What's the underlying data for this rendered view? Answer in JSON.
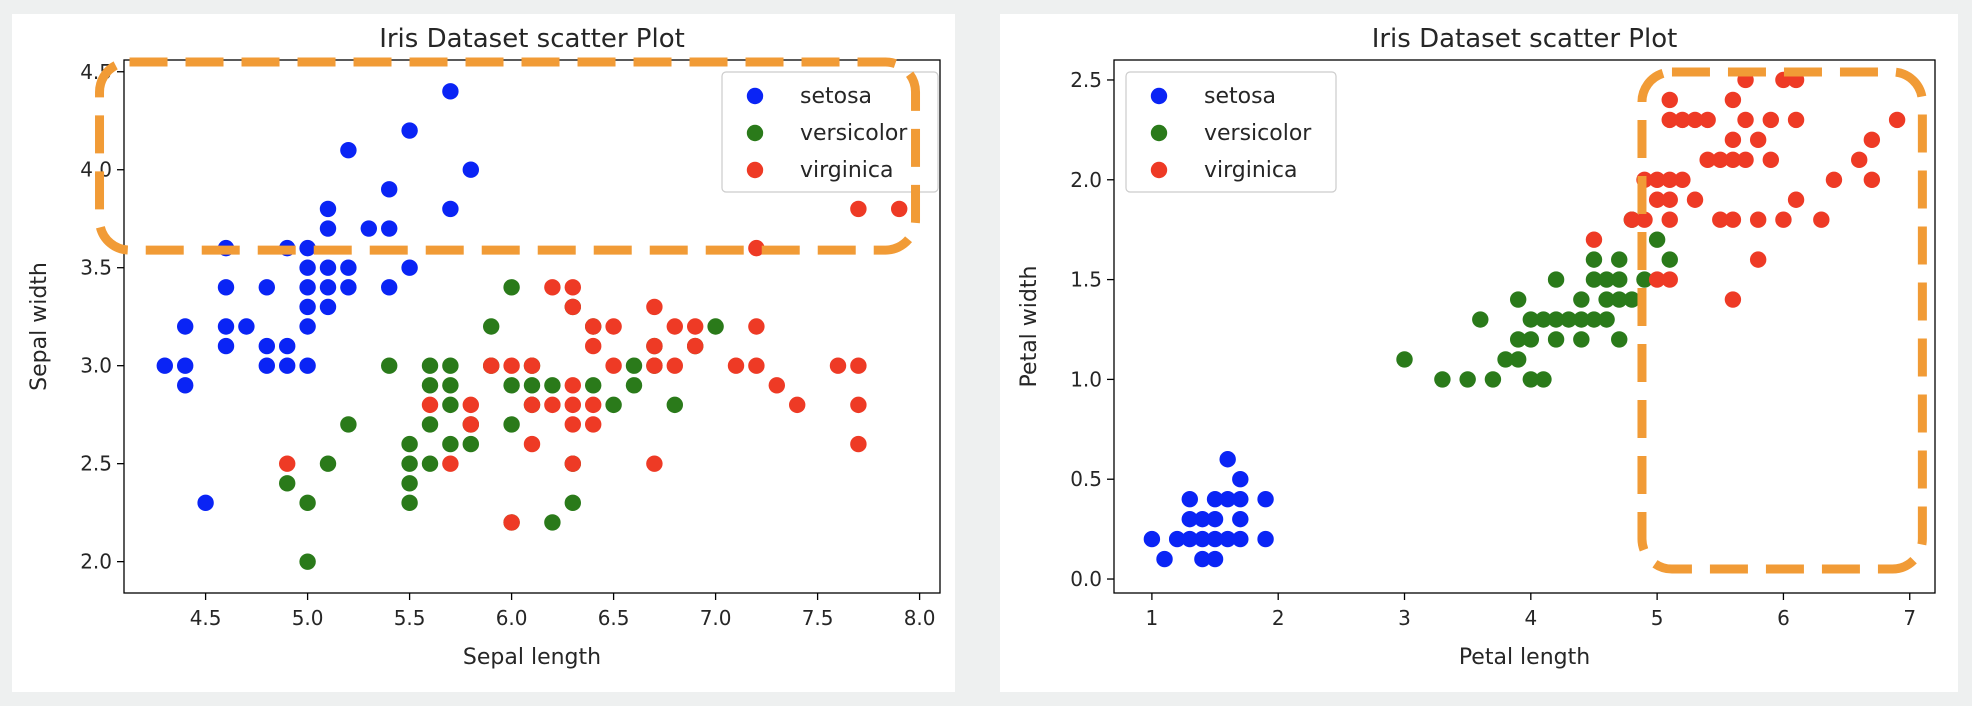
{
  "chart_data": [
    {
      "type": "scatter",
      "title": "Iris Dataset scatter Plot",
      "xlabel": "Sepal length",
      "ylabel": "Sepal width",
      "xlim": [
        4.1,
        8.1
      ],
      "ylim": [
        1.84,
        4.56
      ],
      "xticks": [
        4.5,
        5.0,
        5.5,
        6.0,
        6.5,
        7.0,
        7.5,
        8.0
      ],
      "yticks": [
        2.0,
        2.5,
        3.0,
        3.5,
        4.0,
        4.5
      ],
      "tick_format": "0.0",
      "legend_position": "top-right",
      "highlight_box": {
        "x": [
          3.98,
          7.98
        ],
        "y": [
          3.59,
          4.55
        ]
      },
      "series": [
        {
          "name": "setosa",
          "color": "#0a24f5",
          "points": [
            [
              4.3,
              3.0
            ],
            [
              4.4,
              2.9
            ],
            [
              4.4,
              3.0
            ],
            [
              4.4,
              3.2
            ],
            [
              4.5,
              2.3
            ],
            [
              4.6,
              3.1
            ],
            [
              4.6,
              3.2
            ],
            [
              4.6,
              3.4
            ],
            [
              4.6,
              3.6
            ],
            [
              4.7,
              3.2
            ],
            [
              4.8,
              3.0
            ],
            [
              4.8,
              3.1
            ],
            [
              4.8,
              3.4
            ],
            [
              4.9,
              3.0
            ],
            [
              4.9,
              3.1
            ],
            [
              4.9,
              3.6
            ],
            [
              5.0,
              3.0
            ],
            [
              5.0,
              3.2
            ],
            [
              5.0,
              3.3
            ],
            [
              5.0,
              3.4
            ],
            [
              5.0,
              3.5
            ],
            [
              5.0,
              3.6
            ],
            [
              5.1,
              3.3
            ],
            [
              5.1,
              3.4
            ],
            [
              5.1,
              3.5
            ],
            [
              5.1,
              3.7
            ],
            [
              5.1,
              3.8
            ],
            [
              5.2,
              3.4
            ],
            [
              5.2,
              3.5
            ],
            [
              5.2,
              4.1
            ],
            [
              5.3,
              3.7
            ],
            [
              5.4,
              3.4
            ],
            [
              5.4,
              3.7
            ],
            [
              5.4,
              3.9
            ],
            [
              5.5,
              3.5
            ],
            [
              5.5,
              4.2
            ],
            [
              5.7,
              3.8
            ],
            [
              5.7,
              4.4
            ],
            [
              5.8,
              4.0
            ]
          ]
        },
        {
          "name": "versicolor",
          "color": "#2a7a1a",
          "points": [
            [
              4.9,
              2.4
            ],
            [
              5.0,
              2.0
            ],
            [
              5.0,
              2.3
            ],
            [
              5.1,
              2.5
            ],
            [
              5.2,
              2.7
            ],
            [
              5.4,
              3.0
            ],
            [
              5.5,
              2.3
            ],
            [
              5.5,
              2.4
            ],
            [
              5.5,
              2.5
            ],
            [
              5.5,
              2.6
            ],
            [
              5.6,
              2.5
            ],
            [
              5.6,
              2.7
            ],
            [
              5.6,
              2.9
            ],
            [
              5.6,
              3.0
            ],
            [
              5.7,
              2.6
            ],
            [
              5.7,
              2.8
            ],
            [
              5.7,
              2.9
            ],
            [
              5.7,
              3.0
            ],
            [
              5.8,
              2.6
            ],
            [
              5.8,
              2.7
            ],
            [
              5.9,
              3.0
            ],
            [
              5.9,
              3.2
            ],
            [
              6.0,
              2.2
            ],
            [
              6.0,
              2.7
            ],
            [
              6.0,
              2.9
            ],
            [
              6.0,
              3.4
            ],
            [
              6.1,
              2.8
            ],
            [
              6.1,
              2.9
            ],
            [
              6.1,
              3.0
            ],
            [
              6.2,
              2.2
            ],
            [
              6.2,
              2.9
            ],
            [
              6.3,
              2.3
            ],
            [
              6.3,
              2.5
            ],
            [
              6.3,
              3.3
            ],
            [
              6.4,
              2.9
            ],
            [
              6.4,
              3.2
            ],
            [
              6.5,
              2.8
            ],
            [
              6.6,
              2.9
            ],
            [
              6.6,
              3.0
            ],
            [
              6.7,
              3.0
            ],
            [
              6.7,
              3.1
            ],
            [
              6.8,
              2.8
            ],
            [
              6.9,
              3.1
            ],
            [
              7.0,
              3.2
            ]
          ]
        },
        {
          "name": "virginica",
          "color": "#ee3a25",
          "points": [
            [
              4.9,
              2.5
            ],
            [
              5.6,
              2.8
            ],
            [
              5.7,
              2.5
            ],
            [
              5.8,
              2.7
            ],
            [
              5.8,
              2.8
            ],
            [
              5.9,
              3.0
            ],
            [
              6.0,
              2.2
            ],
            [
              6.0,
              3.0
            ],
            [
              6.1,
              2.6
            ],
            [
              6.1,
              2.8
            ],
            [
              6.1,
              3.0
            ],
            [
              6.2,
              2.8
            ],
            [
              6.2,
              3.4
            ],
            [
              6.3,
              2.5
            ],
            [
              6.3,
              2.7
            ],
            [
              6.3,
              2.8
            ],
            [
              6.3,
              2.9
            ],
            [
              6.3,
              3.3
            ],
            [
              6.3,
              3.4
            ],
            [
              6.4,
              2.7
            ],
            [
              6.4,
              2.8
            ],
            [
              6.4,
              3.1
            ],
            [
              6.4,
              3.2
            ],
            [
              6.5,
              3.0
            ],
            [
              6.5,
              3.2
            ],
            [
              6.7,
              2.5
            ],
            [
              6.7,
              3.0
            ],
            [
              6.7,
              3.1
            ],
            [
              6.7,
              3.3
            ],
            [
              6.8,
              3.0
            ],
            [
              6.8,
              3.2
            ],
            [
              6.9,
              3.1
            ],
            [
              6.9,
              3.2
            ],
            [
              7.1,
              3.0
            ],
            [
              7.2,
              3.0
            ],
            [
              7.2,
              3.2
            ],
            [
              7.2,
              3.6
            ],
            [
              7.3,
              2.9
            ],
            [
              7.4,
              2.8
            ],
            [
              7.6,
              3.0
            ],
            [
              7.7,
              2.6
            ],
            [
              7.7,
              2.8
            ],
            [
              7.7,
              3.0
            ],
            [
              7.7,
              3.8
            ],
            [
              7.9,
              3.8
            ]
          ]
        }
      ]
    },
    {
      "type": "scatter",
      "title": "Iris Dataset scatter Plot",
      "xlabel": "Petal length",
      "ylabel": "Petal width",
      "xlim": [
        0.7,
        7.2
      ],
      "ylim": [
        -0.07,
        2.6
      ],
      "xticks": [
        1,
        2,
        3,
        4,
        5,
        6,
        7
      ],
      "yticks": [
        0.0,
        0.5,
        1.0,
        1.5,
        2.0,
        2.5
      ],
      "tick_format": "y0.0",
      "legend_position": "top-left",
      "highlight_box": {
        "x": [
          4.88,
          7.1
        ],
        "y": [
          0.05,
          2.54
        ]
      },
      "series": [
        {
          "name": "setosa",
          "color": "#0a24f5",
          "points": [
            [
              1.0,
              0.2
            ],
            [
              1.1,
              0.1
            ],
            [
              1.2,
              0.2
            ],
            [
              1.3,
              0.2
            ],
            [
              1.3,
              0.3
            ],
            [
              1.3,
              0.4
            ],
            [
              1.4,
              0.1
            ],
            [
              1.4,
              0.2
            ],
            [
              1.4,
              0.3
            ],
            [
              1.5,
              0.1
            ],
            [
              1.5,
              0.2
            ],
            [
              1.5,
              0.3
            ],
            [
              1.5,
              0.4
            ],
            [
              1.6,
              0.2
            ],
            [
              1.6,
              0.4
            ],
            [
              1.6,
              0.6
            ],
            [
              1.7,
              0.2
            ],
            [
              1.7,
              0.3
            ],
            [
              1.7,
              0.4
            ],
            [
              1.7,
              0.5
            ],
            [
              1.9,
              0.2
            ],
            [
              1.9,
              0.4
            ]
          ]
        },
        {
          "name": "versicolor",
          "color": "#2a7a1a",
          "points": [
            [
              3.0,
              1.1
            ],
            [
              3.3,
              1.0
            ],
            [
              3.5,
              1.0
            ],
            [
              3.6,
              1.3
            ],
            [
              3.7,
              1.0
            ],
            [
              3.8,
              1.1
            ],
            [
              3.9,
              1.1
            ],
            [
              3.9,
              1.2
            ],
            [
              3.9,
              1.4
            ],
            [
              4.0,
              1.0
            ],
            [
              4.0,
              1.2
            ],
            [
              4.0,
              1.3
            ],
            [
              4.1,
              1.0
            ],
            [
              4.1,
              1.3
            ],
            [
              4.2,
              1.2
            ],
            [
              4.2,
              1.3
            ],
            [
              4.2,
              1.5
            ],
            [
              4.3,
              1.3
            ],
            [
              4.4,
              1.2
            ],
            [
              4.4,
              1.3
            ],
            [
              4.4,
              1.4
            ],
            [
              4.5,
              1.3
            ],
            [
              4.5,
              1.5
            ],
            [
              4.5,
              1.6
            ],
            [
              4.6,
              1.3
            ],
            [
              4.6,
              1.4
            ],
            [
              4.6,
              1.5
            ],
            [
              4.7,
              1.2
            ],
            [
              4.7,
              1.4
            ],
            [
              4.7,
              1.5
            ],
            [
              4.7,
              1.6
            ],
            [
              4.8,
              1.4
            ],
            [
              4.8,
              1.8
            ],
            [
              4.9,
              1.5
            ],
            [
              5.0,
              1.7
            ],
            [
              5.1,
              1.6
            ]
          ]
        },
        {
          "name": "virginica",
          "color": "#ee3a25",
          "points": [
            [
              4.5,
              1.7
            ],
            [
              4.8,
              1.8
            ],
            [
              4.9,
              1.8
            ],
            [
              4.9,
              2.0
            ],
            [
              5.0,
              1.5
            ],
            [
              5.0,
              1.9
            ],
            [
              5.0,
              2.0
            ],
            [
              5.1,
              1.5
            ],
            [
              5.1,
              1.8
            ],
            [
              5.1,
              1.9
            ],
            [
              5.1,
              2.0
            ],
            [
              5.1,
              2.3
            ],
            [
              5.1,
              2.4
            ],
            [
              5.2,
              2.0
            ],
            [
              5.2,
              2.3
            ],
            [
              5.3,
              1.9
            ],
            [
              5.3,
              2.3
            ],
            [
              5.4,
              2.1
            ],
            [
              5.4,
              2.3
            ],
            [
              5.5,
              1.8
            ],
            [
              5.5,
              2.1
            ],
            [
              5.6,
              1.4
            ],
            [
              5.6,
              1.8
            ],
            [
              5.6,
              2.1
            ],
            [
              5.6,
              2.2
            ],
            [
              5.6,
              2.4
            ],
            [
              5.7,
              2.1
            ],
            [
              5.7,
              2.3
            ],
            [
              5.7,
              2.5
            ],
            [
              5.8,
              1.6
            ],
            [
              5.8,
              1.8
            ],
            [
              5.8,
              2.2
            ],
            [
              5.9,
              2.1
            ],
            [
              5.9,
              2.3
            ],
            [
              6.0,
              1.8
            ],
            [
              6.0,
              2.5
            ],
            [
              6.1,
              1.9
            ],
            [
              6.1,
              2.3
            ],
            [
              6.1,
              2.5
            ],
            [
              6.3,
              1.8
            ],
            [
              6.4,
              2.0
            ],
            [
              6.6,
              2.1
            ],
            [
              6.7,
              2.0
            ],
            [
              6.7,
              2.2
            ],
            [
              6.9,
              2.3
            ]
          ]
        }
      ]
    }
  ]
}
